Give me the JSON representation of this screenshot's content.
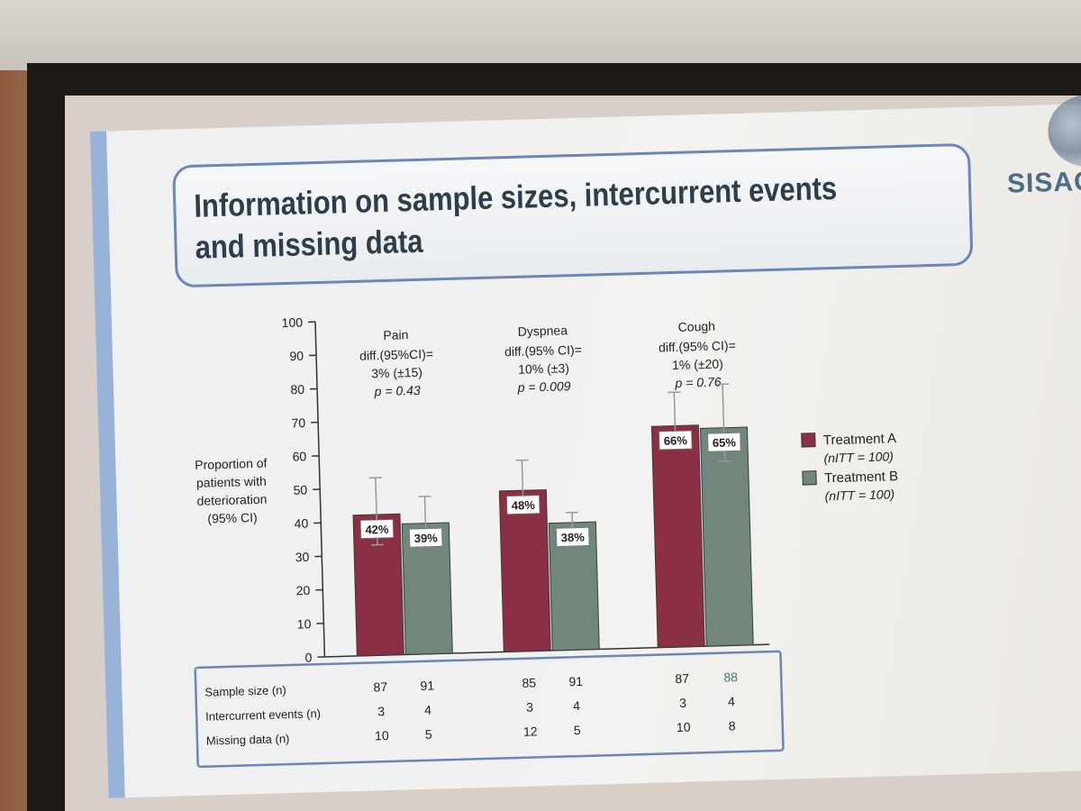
{
  "slide": {
    "title": "Information on sample sizes, intercurrent events and missing data",
    "logo": "SISAQO"
  },
  "chart_data": {
    "type": "bar",
    "ylabel": [
      "Proportion of",
      "patients with",
      "deterioration",
      "(95% CI)"
    ],
    "ylim": [
      0,
      100
    ],
    "yticks": [
      0,
      10,
      20,
      30,
      40,
      50,
      60,
      70,
      80,
      90,
      100
    ],
    "categories": [
      "Pain",
      "Dyspnea",
      "Cough"
    ],
    "annotations": [
      [
        "diff.(95%CI)=",
        "3% (±15)",
        "p = 0.43"
      ],
      [
        "diff.(95% CI)=",
        "10% (±3)",
        "p = 0.009"
      ],
      [
        "diff.(95% CI)=",
        "1% (±20)",
        "p = 0.76"
      ]
    ],
    "series": [
      {
        "name": "Treatment A",
        "n_label": "(nITT = 100)",
        "color": "#8b2f45",
        "values": [
          42,
          48,
          66
        ],
        "value_labels": [
          "42%",
          "48%",
          "66%"
        ],
        "ci_low": [
          33,
          43,
          60
        ],
        "ci_high": [
          53,
          57,
          76
        ]
      },
      {
        "name": "Treatment B",
        "n_label": "(nITT = 100)",
        "color": "#71877c",
        "values": [
          39,
          38,
          65
        ],
        "value_labels": [
          "39%",
          "38%",
          "65%"
        ],
        "ci_low": [
          32,
          31,
          55
        ],
        "ci_high": [
          47,
          41,
          78
        ]
      }
    ],
    "legend_position": "right"
  },
  "table": {
    "rows": [
      {
        "label": "Sample size (n)",
        "values": [
          "87",
          "91",
          "85",
          "91",
          "87",
          "88"
        ]
      },
      {
        "label": "Intercurrent events (n)",
        "values": [
          "3",
          "4",
          "3",
          "4",
          "3",
          "4"
        ]
      },
      {
        "label": "Missing data (n)",
        "values": [
          "10",
          "5",
          "12",
          "5",
          "10",
          "8"
        ]
      }
    ]
  }
}
